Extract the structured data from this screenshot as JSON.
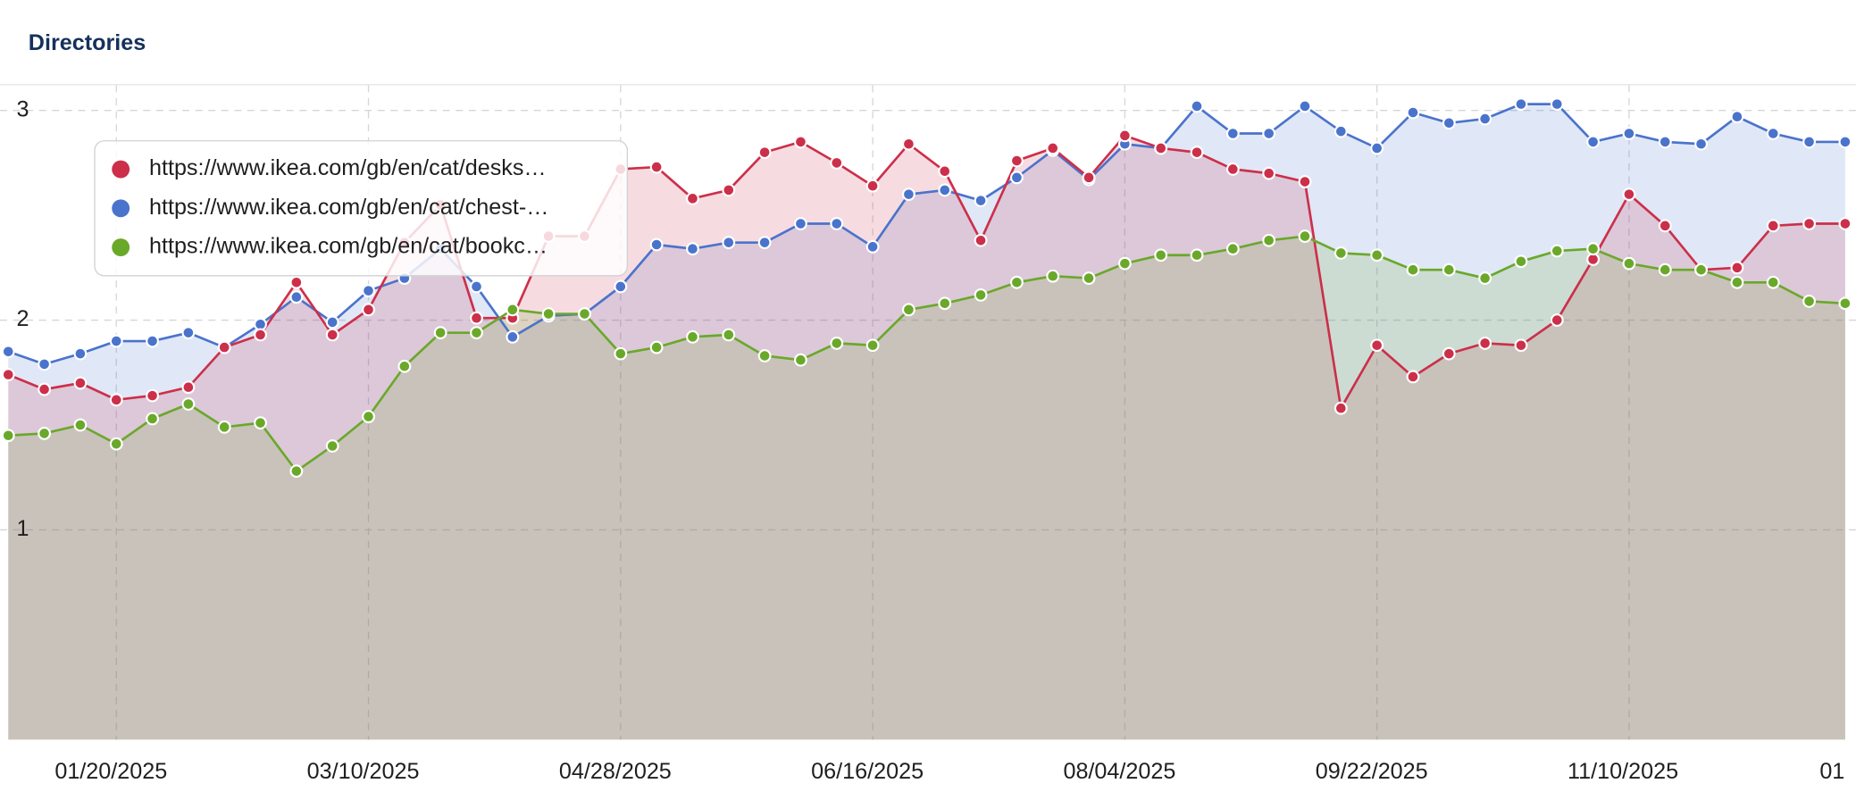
{
  "chart_data": {
    "type": "area",
    "title": "Directories",
    "ylim": [
      0,
      3.12
    ],
    "yticks": [
      1,
      2,
      3
    ],
    "xlim": [
      -0.23,
      51.3
    ],
    "xticks": [
      {
        "value": 3,
        "label": "01/20/2025"
      },
      {
        "value": 10,
        "label": "03/10/2025"
      },
      {
        "value": 17,
        "label": "04/28/2025"
      },
      {
        "value": 24,
        "label": "06/16/2025"
      },
      {
        "value": 31,
        "label": "08/04/2025"
      },
      {
        "value": 38,
        "label": "09/22/2025"
      },
      {
        "value": 45,
        "label": "11/10/2025"
      },
      {
        "value": 52,
        "label": "01"
      }
    ],
    "grid": true,
    "legend": "top-left",
    "series": [
      {
        "name": "https://www.ikea.com/gb/en/cat/chest-…",
        "color": "#4a73cc",
        "values": [
          1.85,
          1.79,
          1.84,
          1.9,
          1.9,
          1.94,
          1.87,
          1.98,
          2.11,
          1.99,
          2.14,
          2.2,
          2.34,
          2.16,
          1.92,
          2.02,
          2.03,
          2.16,
          2.36,
          2.34,
          2.37,
          2.37,
          2.46,
          2.46,
          2.35,
          2.6,
          2.62,
          2.57,
          2.68,
          2.81,
          2.67,
          2.84,
          2.82,
          3.02,
          2.89,
          2.89,
          3.02,
          2.9,
          2.82,
          2.99,
          2.94,
          2.96,
          3.03,
          3.03,
          2.85,
          2.89,
          2.85,
          2.84,
          2.97,
          2.89,
          2.85,
          2.85
        ]
      },
      {
        "name": "https://www.ikea.com/gb/en/cat/desks…",
        "color": "#cc2f4a",
        "values": [
          1.74,
          1.67,
          1.7,
          1.62,
          1.64,
          1.68,
          1.87,
          1.93,
          2.18,
          1.93,
          2.05,
          2.37,
          2.55,
          2.01,
          2.01,
          2.4,
          2.4,
          2.72,
          2.73,
          2.58,
          2.62,
          2.8,
          2.85,
          2.75,
          2.64,
          2.84,
          2.71,
          2.38,
          2.76,
          2.82,
          2.68,
          2.88,
          2.82,
          2.8,
          2.72,
          2.7,
          2.66,
          1.58,
          1.88,
          1.73,
          1.84,
          1.89,
          1.88,
          2.0,
          2.29,
          2.6,
          2.45,
          2.24,
          2.25,
          2.45,
          2.46,
          2.46
        ]
      },
      {
        "name": "https://www.ikea.com/gb/en/cat/bookc…",
        "color": "#6aa82a",
        "values": [
          1.45,
          1.46,
          1.5,
          1.41,
          1.53,
          1.6,
          1.49,
          1.51,
          1.28,
          1.4,
          1.54,
          1.78,
          1.94,
          1.94,
          2.05,
          2.03,
          2.03,
          1.84,
          1.87,
          1.92,
          1.93,
          1.83,
          1.81,
          1.89,
          1.88,
          2.05,
          2.08,
          2.12,
          2.18,
          2.21,
          2.2,
          2.27,
          2.31,
          2.31,
          2.34,
          2.38,
          2.4,
          2.32,
          2.31,
          2.24,
          2.24,
          2.2,
          2.28,
          2.33,
          2.34,
          2.27,
          2.24,
          2.24,
          2.18,
          2.18,
          2.09,
          2.08
        ]
      }
    ]
  }
}
